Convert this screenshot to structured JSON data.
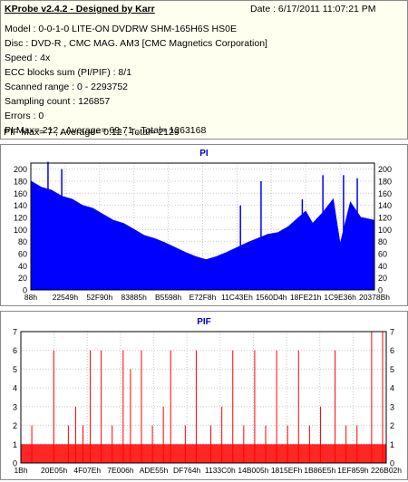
{
  "header": {
    "title": "KProbe v2.4.2 - Designed by Karr",
    "date": "Date : 6/17/2011 11:07:21 PM",
    "lines": [
      "Model : 0-0-1-0 LITE-ON DVDRW SHM-165H6S HS0E",
      "Disc : DVD-R , CMC MAG. AM3 [CMC Magnetics Corporation]",
      "Speed : 4x",
      "ECC blocks sum (PI/PIF) : 8/1",
      "Scanned range : 0 - 2293752",
      "Sampling count : 126857",
      "Errors : 0",
      "PI Max= 212 , Average= 69.71 , Total= 1263168",
      "PIF Max= 7 , Average= 0.12 , Total= 2129"
    ]
  },
  "chart_data": [
    {
      "type": "area",
      "title": "PI",
      "color": "#0000ff",
      "ylim": [
        0,
        210
      ],
      "yticks": [
        0,
        20,
        40,
        60,
        80,
        100,
        120,
        140,
        160,
        180,
        200
      ],
      "xtick_labels": [
        "88h",
        "22549h",
        "52F90h",
        "83885h",
        "B5598h",
        "E72F8h",
        "11C43Eh",
        "1560D4h",
        "18FE21h",
        "1C9E36h",
        "20378Bh"
      ],
      "x": [
        0,
        3,
        6,
        9,
        12,
        15,
        18,
        21,
        24,
        27,
        30,
        33,
        36,
        39,
        42,
        45,
        48,
        51,
        54,
        57,
        60,
        63,
        66,
        69,
        72,
        75,
        78,
        80,
        82,
        85,
        88,
        90,
        93,
        96,
        100
      ],
      "values": [
        180,
        170,
        165,
        155,
        150,
        140,
        135,
        125,
        115,
        110,
        100,
        90,
        85,
        78,
        70,
        62,
        55,
        50,
        55,
        62,
        70,
        78,
        85,
        92,
        95,
        105,
        120,
        130,
        110,
        128,
        150,
        75,
        145,
        120,
        115
      ],
      "peaks": [
        {
          "x": 5,
          "value": 212
        },
        {
          "x": 9,
          "value": 200
        },
        {
          "x": 61,
          "value": 140
        },
        {
          "x": 67,
          "value": 180
        },
        {
          "x": 79,
          "value": 150
        },
        {
          "x": 85,
          "value": 190
        },
        {
          "x": 91,
          "value": 190
        },
        {
          "x": 95,
          "value": 185
        }
      ]
    },
    {
      "type": "bar",
      "title": "PIF",
      "color": "#ff0000",
      "ylim": [
        0,
        7
      ],
      "yticks": [
        0,
        1,
        2,
        3,
        4,
        5,
        6,
        7
      ],
      "xtick_labels": [
        "1Bh",
        "20E05h",
        "4F07Eh",
        "7E006h",
        "ADE55h",
        "DF764h",
        "1133C0h",
        "14B005h",
        "1815EFh",
        "1B86E5h",
        "1EF859h",
        "226B02h"
      ],
      "spikes": [
        {
          "x": 3,
          "value": 2
        },
        {
          "x": 9,
          "value": 6
        },
        {
          "x": 13,
          "value": 2
        },
        {
          "x": 15,
          "value": 3
        },
        {
          "x": 17,
          "value": 2
        },
        {
          "x": 19,
          "value": 6
        },
        {
          "x": 22,
          "value": 6
        },
        {
          "x": 25,
          "value": 2
        },
        {
          "x": 28,
          "value": 6
        },
        {
          "x": 30,
          "value": 5
        },
        {
          "x": 33,
          "value": 6
        },
        {
          "x": 36,
          "value": 2
        },
        {
          "x": 39,
          "value": 3
        },
        {
          "x": 41,
          "value": 6
        },
        {
          "x": 45,
          "value": 2
        },
        {
          "x": 48,
          "value": 6
        },
        {
          "x": 52,
          "value": 2
        },
        {
          "x": 55,
          "value": 3
        },
        {
          "x": 58,
          "value": 6
        },
        {
          "x": 61,
          "value": 2
        },
        {
          "x": 64,
          "value": 6
        },
        {
          "x": 67,
          "value": 2
        },
        {
          "x": 70,
          "value": 6
        },
        {
          "x": 73,
          "value": 2
        },
        {
          "x": 76,
          "value": 6
        },
        {
          "x": 79,
          "value": 2
        },
        {
          "x": 82,
          "value": 3
        },
        {
          "x": 86,
          "value": 6
        },
        {
          "x": 89,
          "value": 2
        },
        {
          "x": 92,
          "value": 2
        },
        {
          "x": 96,
          "value": 7
        },
        {
          "x": 99,
          "value": 7
        }
      ]
    }
  ]
}
